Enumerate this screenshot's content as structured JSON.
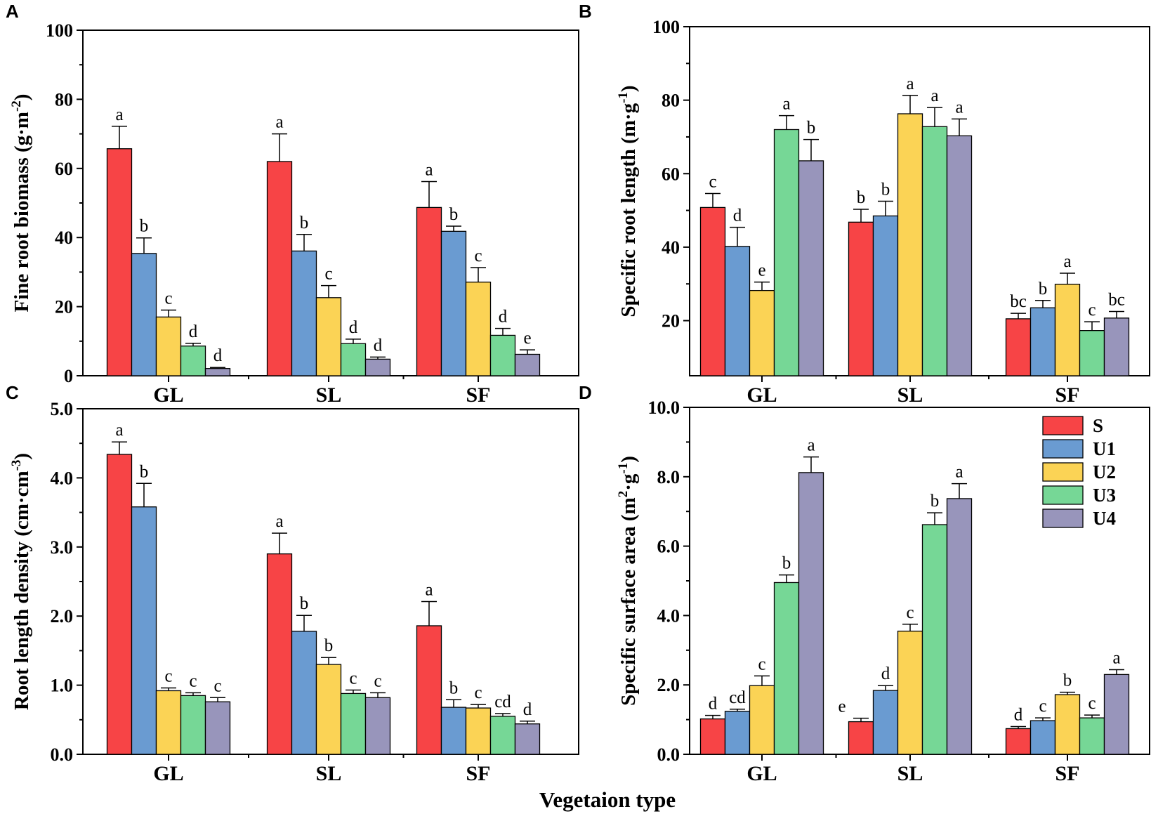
{
  "x_axis_title": "Vegetaion type",
  "colors": {
    "S": "#f74446",
    "U1": "#6a9bd1",
    "U2": "#fbd355",
    "U3": "#76d796",
    "U4": "#9895bb"
  },
  "legend": [
    "S",
    "U1",
    "U2",
    "U3",
    "U4"
  ],
  "chart_data": [
    {
      "panel": "A",
      "type": "bar",
      "categories": [
        "GL",
        "SL",
        "SF"
      ],
      "ylabel": "Fine root biomass (g·m",
      "ylabel_sup": "-2",
      "ylabel_end": ")",
      "ylim": [
        0,
        100
      ],
      "yticks": [
        0,
        20,
        40,
        60,
        80,
        100
      ],
      "tick_labels": [
        "0",
        "20",
        "40",
        "60",
        "80",
        "100"
      ],
      "series": [
        {
          "name": "S",
          "values": [
            65.7,
            62.0,
            48.7
          ],
          "errors": [
            6.5,
            8.0,
            7.5
          ],
          "sig": [
            "a",
            "a",
            "a"
          ]
        },
        {
          "name": "U1",
          "values": [
            35.4,
            36.1,
            41.8
          ],
          "errors": [
            4.5,
            4.8,
            1.5
          ],
          "sig": [
            "b",
            "b",
            "b"
          ]
        },
        {
          "name": "U2",
          "values": [
            17.0,
            22.6,
            27.1
          ],
          "errors": [
            2.0,
            3.5,
            4.2
          ],
          "sig": [
            "c",
            "c",
            "c"
          ]
        },
        {
          "name": "U3",
          "values": [
            8.6,
            9.3,
            11.7
          ],
          "errors": [
            0.8,
            1.3,
            2.0
          ],
          "sig": [
            "d",
            "d",
            "d"
          ]
        },
        {
          "name": "U4",
          "values": [
            2.1,
            4.8,
            6.2
          ],
          "errors": [
            0.3,
            0.6,
            1.3
          ],
          "sig": [
            "d",
            "d",
            "e"
          ]
        }
      ]
    },
    {
      "panel": "B",
      "type": "bar",
      "categories": [
        "GL",
        "SL",
        "SF"
      ],
      "ylabel": "Specific root length (m·g",
      "ylabel_sup": "-1",
      "ylabel_end": ")",
      "ylim": [
        5,
        100
      ],
      "yticks": [
        20,
        40,
        60,
        80,
        100
      ],
      "tick_labels": [
        "20",
        "40",
        "60",
        "80",
        "100"
      ],
      "series": [
        {
          "name": "S",
          "values": [
            50.8,
            46.8,
            20.5
          ],
          "errors": [
            3.8,
            3.5,
            1.5
          ],
          "sig": [
            "c",
            "b",
            "bc"
          ]
        },
        {
          "name": "U1",
          "values": [
            40.2,
            48.5,
            23.5
          ],
          "errors": [
            5.2,
            4.0,
            2.0
          ],
          "sig": [
            "d",
            "b",
            "b"
          ]
        },
        {
          "name": "U2",
          "values": [
            28.2,
            76.3,
            29.9
          ],
          "errors": [
            2.3,
            5.0,
            3.0
          ],
          "sig": [
            "e",
            "a",
            "a"
          ]
        },
        {
          "name": "U3",
          "values": [
            72.0,
            72.8,
            17.3
          ],
          "errors": [
            3.8,
            5.2,
            2.4
          ],
          "sig": [
            "a",
            "a",
            "c"
          ]
        },
        {
          "name": "U4",
          "values": [
            63.5,
            70.3,
            20.7
          ],
          "errors": [
            5.8,
            4.6,
            1.8
          ],
          "sig": [
            "b",
            "a",
            "bc"
          ]
        }
      ]
    },
    {
      "panel": "C",
      "type": "bar",
      "categories": [
        "GL",
        "SL",
        "SF"
      ],
      "ylabel": "Root length density  (cm·cm",
      "ylabel_sup": "-3",
      "ylabel_end": ")",
      "ylim": [
        0,
        5
      ],
      "yticks": [
        0,
        1,
        2,
        3,
        4,
        5
      ],
      "tick_labels": [
        "0.0",
        "1.0",
        "2.0",
        "3.0",
        "4.0",
        "5.0"
      ],
      "series": [
        {
          "name": "S",
          "values": [
            4.34,
            2.9,
            1.86
          ],
          "errors": [
            0.18,
            0.3,
            0.35
          ],
          "sig": [
            "a",
            "a",
            "a"
          ]
        },
        {
          "name": "U1",
          "values": [
            3.58,
            1.78,
            0.68
          ],
          "errors": [
            0.34,
            0.23,
            0.11
          ],
          "sig": [
            "b",
            "b",
            "b"
          ]
        },
        {
          "name": "U2",
          "values": [
            0.92,
            1.3,
            0.67
          ],
          "errors": [
            0.04,
            0.1,
            0.05
          ],
          "sig": [
            "c",
            "b",
            "c"
          ]
        },
        {
          "name": "U3",
          "values": [
            0.85,
            0.88,
            0.55
          ],
          "errors": [
            0.04,
            0.05,
            0.04
          ],
          "sig": [
            "c",
            "c",
            "cd"
          ]
        },
        {
          "name": "U4",
          "values": [
            0.76,
            0.82,
            0.44
          ],
          "errors": [
            0.06,
            0.07,
            0.04
          ],
          "sig": [
            "c",
            "c",
            "d"
          ]
        }
      ]
    },
    {
      "panel": "D",
      "type": "bar",
      "categories": [
        "GL",
        "SL",
        "SF"
      ],
      "ylabel": "Specific surface area (m",
      "ylabel_sup": "2",
      "ylabel_mid": "·g",
      "ylabel_sup2": "-1",
      "ylabel_end": ")",
      "ylim": [
        0,
        10
      ],
      "yticks": [
        0,
        2,
        4,
        6,
        8,
        10
      ],
      "tick_labels": [
        "0.0",
        "2.0",
        "4.0",
        "6.0",
        "8.0",
        "10.0"
      ],
      "series": [
        {
          "name": "S",
          "values": [
            1.02,
            0.94,
            0.74
          ],
          "errors": [
            0.1,
            0.1,
            0.06
          ],
          "sig": [
            "d",
            "e",
            "d"
          ]
        },
        {
          "name": "U1",
          "values": [
            1.24,
            1.84,
            0.97
          ],
          "errors": [
            0.06,
            0.14,
            0.08
          ],
          "sig": [
            "cd",
            "d",
            "c"
          ]
        },
        {
          "name": "U2",
          "values": [
            1.98,
            3.55,
            1.72
          ],
          "errors": [
            0.28,
            0.2,
            0.07
          ],
          "sig": [
            "c",
            "c",
            "b"
          ]
        },
        {
          "name": "U3",
          "values": [
            4.95,
            6.62,
            1.05
          ],
          "errors": [
            0.22,
            0.34,
            0.08
          ],
          "sig": [
            "b",
            "b",
            "c"
          ]
        },
        {
          "name": "U4",
          "values": [
            8.12,
            7.37,
            2.3
          ],
          "errors": [
            0.45,
            0.43,
            0.14
          ],
          "sig": [
            "a",
            "a",
            "a"
          ]
        }
      ]
    }
  ]
}
